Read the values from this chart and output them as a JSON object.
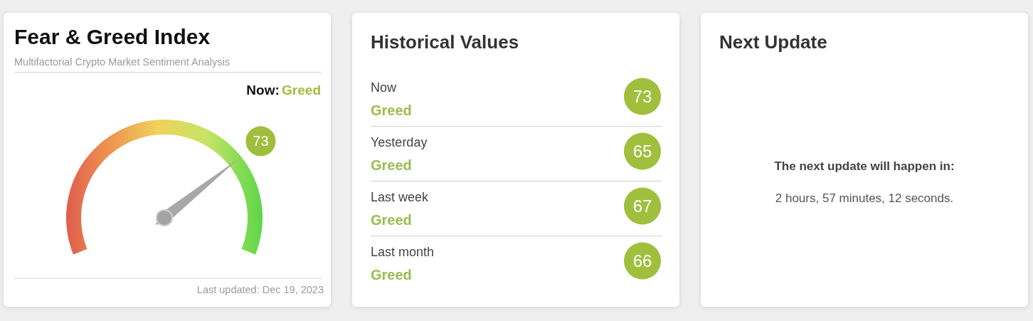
{
  "chart_data": [
    {
      "type": "other",
      "title": "Fear & Greed Index",
      "subtitle": "Multifactorial Crypto Market Sentiment Analysis",
      "categories": [
        "Greed"
      ],
      "values": [
        73
      ],
      "color": "#9fbe3c",
      "data_labels": true,
      "annotations": [
        "Now:",
        "Last updated: Dec 19, 2023"
      ]
    },
    {
      "type": "other",
      "title": "Historical Values",
      "categories": [
        "Now",
        "Yesterday",
        "Last week",
        "Last month"
      ],
      "values": [
        73,
        65,
        67,
        66
      ],
      "color": "#a0bf3c",
      "data_labels": true,
      "annotations": [
        {
          "text": "Greed",
          "x": "Now"
        },
        {
          "text": "Greed",
          "x": "Yesterday"
        },
        {
          "text": "Greed",
          "x": "Last week"
        },
        {
          "text": "Greed",
          "x": "Last month"
        }
      ]
    },
    {
      "type": "other",
      "title": "Next Update",
      "annotations": [
        "The next update will happen in:",
        "2 hours, 57 minutes, 12 seconds."
      ]
    }
  ]
}
